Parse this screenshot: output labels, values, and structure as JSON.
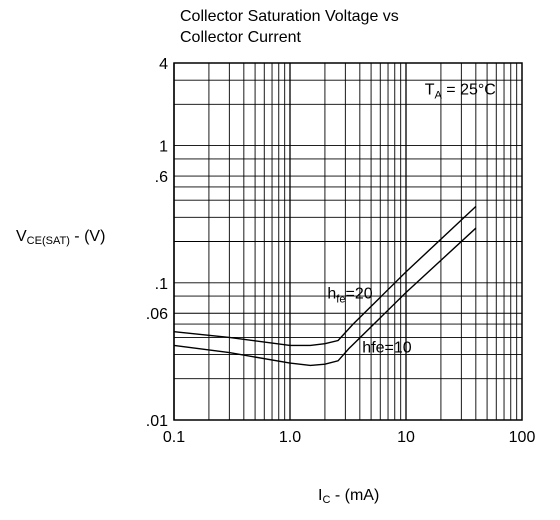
{
  "chart_data": {
    "type": "line",
    "title_line1": "Collector Saturation Voltage vs",
    "title_line2": "Collector Current",
    "ylabel": {
      "main": "V",
      "sub": "CE(SAT)",
      "tail": " - (V)"
    },
    "xlabel": {
      "main": "I",
      "sub": "C",
      "tail": " - (mA)"
    },
    "x_scale": "log",
    "y_scale": "log",
    "xlim": [
      0.1,
      100
    ],
    "ylim": [
      0.01,
      4
    ],
    "x_ticks": [
      {
        "value": 0.1,
        "label": "0.1"
      },
      {
        "value": 1,
        "label": "1.0"
      },
      {
        "value": 10,
        "label": "10"
      },
      {
        "value": 100,
        "label": "100"
      }
    ],
    "y_ticks": [
      {
        "value": 0.01,
        "label": ".01"
      },
      {
        "value": 0.06,
        "label": ".06"
      },
      {
        "value": 0.1,
        "label": ".1"
      },
      {
        "value": 0.6,
        "label": ".6"
      },
      {
        "value": 1,
        "label": "1"
      },
      {
        "value": 4,
        "label": "4"
      }
    ],
    "grid": true,
    "annotation": {
      "main": "T",
      "sub": "A",
      "tail": " = 25°C"
    },
    "series": [
      {
        "name": "hfe=20",
        "label": {
          "main": "h",
          "sub": "fe",
          "tail": "=20"
        },
        "x": [
          0.1,
          0.3,
          1.0,
          1.5,
          2.0,
          2.6,
          3.5,
          10,
          40
        ],
        "y": [
          0.044,
          0.04,
          0.035,
          0.035,
          0.036,
          0.038,
          0.05,
          0.12,
          0.36
        ]
      },
      {
        "name": "hfe=10",
        "label": {
          "main": "hfe=10",
          "sub": "",
          "tail": ""
        },
        "x": [
          0.1,
          0.3,
          1.0,
          1.5,
          2.0,
          2.6,
          3.2,
          10,
          40
        ],
        "y": [
          0.035,
          0.031,
          0.026,
          0.025,
          0.0255,
          0.027,
          0.033,
          0.085,
          0.25
        ]
      }
    ]
  }
}
